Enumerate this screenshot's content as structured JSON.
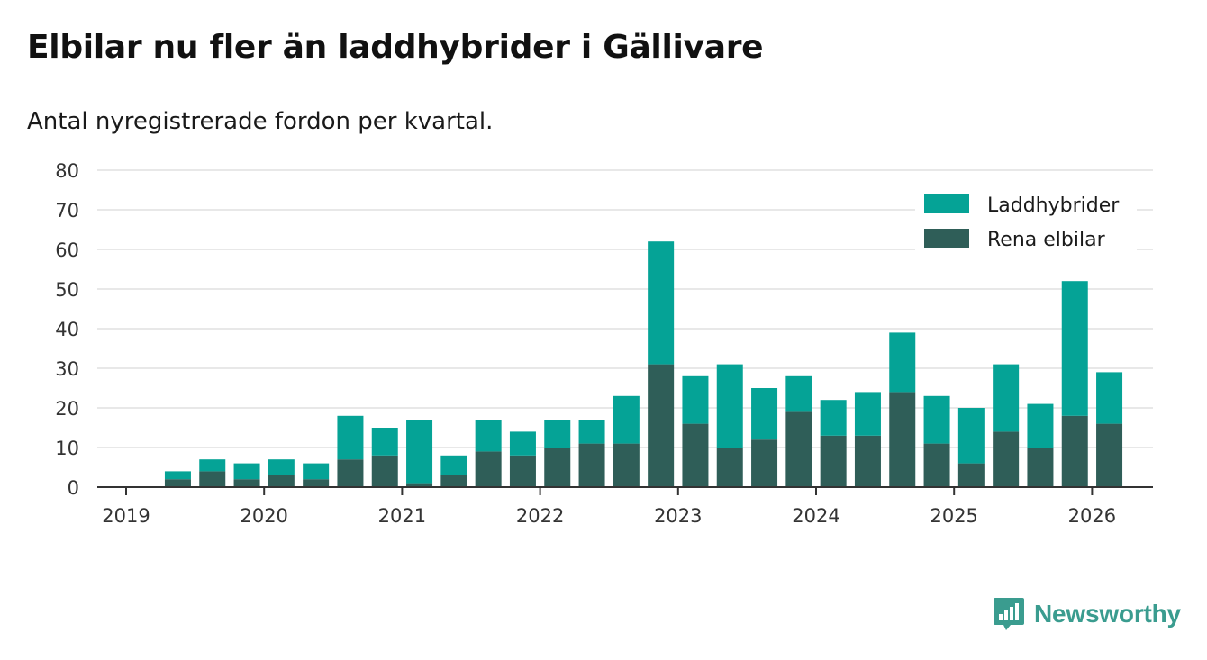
{
  "title": "Elbilar nu fler än laddhybrider i Gällivare",
  "subtitle": "Antal nyregistrerade fordon per kvartal.",
  "brand": {
    "name": "Newsworthy",
    "color": "#3a9c8f"
  },
  "chart_data": {
    "type": "bar",
    "stacked": true,
    "categories": [
      "2019 Q2",
      "2019 Q3",
      "2019 Q4",
      "2020 Q1",
      "2020 Q2",
      "2020 Q3",
      "2020 Q4",
      "2021 Q1",
      "2021 Q2",
      "2021 Q3",
      "2021 Q4",
      "2022 Q1",
      "2022 Q2",
      "2022 Q3",
      "2022 Q4",
      "2023 Q1",
      "2023 Q2",
      "2023 Q3",
      "2023 Q4",
      "2024 Q1",
      "2024 Q2",
      "2024 Q3",
      "2024 Q4",
      "2025 Q1",
      "2025 Q2",
      "2025 Q3",
      "2025 Q4",
      "2026 Q1"
    ],
    "series": [
      {
        "name": "Rena elbilar",
        "color": "#2f5e58",
        "values": [
          2,
          4,
          2,
          3,
          2,
          7,
          8,
          1,
          3,
          9,
          8,
          10,
          11,
          11,
          31,
          16,
          10,
          12,
          19,
          13,
          13,
          24,
          11,
          6,
          14,
          10,
          18,
          16
        ]
      },
      {
        "name": "Laddhybrider",
        "color": "#05a396",
        "values": [
          2,
          3,
          4,
          4,
          4,
          11,
          7,
          16,
          5,
          8,
          6,
          7,
          6,
          12,
          31,
          12,
          21,
          13,
          9,
          9,
          11,
          15,
          12,
          14,
          17,
          11,
          34,
          13
        ]
      }
    ],
    "x_ticks": [
      "2019",
      "2020",
      "2021",
      "2022",
      "2023",
      "2024",
      "2025",
      "2026"
    ],
    "y_ticks": [
      "0",
      "10",
      "20",
      "30",
      "40",
      "50",
      "60",
      "70",
      "80"
    ],
    "ylim": [
      0,
      80
    ],
    "xlabel": "",
    "ylabel": "",
    "grid": true,
    "legend_position": "top-right",
    "legend_entries": [
      "Laddhybrider",
      "Rena elbilar"
    ]
  }
}
